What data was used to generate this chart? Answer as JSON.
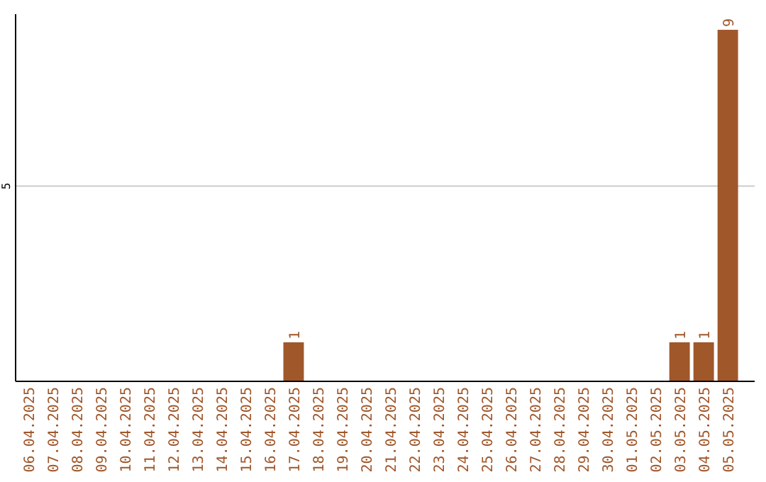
{
  "chart_data": {
    "type": "bar",
    "categories": [
      "06.04.2025",
      "07.04.2025",
      "08.04.2025",
      "09.04.2025",
      "10.04.2025",
      "11.04.2025",
      "12.04.2025",
      "13.04.2025",
      "14.04.2025",
      "15.04.2025",
      "16.04.2025",
      "17.04.2025",
      "18.04.2025",
      "19.04.2025",
      "20.04.2025",
      "21.04.2025",
      "22.04.2025",
      "23.04.2025",
      "24.04.2025",
      "25.04.2025",
      "26.04.2025",
      "27.04.2025",
      "28.04.2025",
      "29.04.2025",
      "30.04.2025",
      "01.05.2025",
      "02.05.2025",
      "03.05.2025",
      "04.05.2025",
      "05.05.2025"
    ],
    "values": [
      0,
      0,
      0,
      0,
      0,
      0,
      0,
      0,
      0,
      0,
      0,
      1,
      0,
      0,
      0,
      0,
      0,
      0,
      0,
      0,
      0,
      0,
      0,
      0,
      0,
      0,
      0,
      1,
      1,
      9
    ],
    "value_labels": [
      null,
      null,
      null,
      null,
      null,
      null,
      null,
      null,
      null,
      null,
      null,
      "1",
      null,
      null,
      null,
      null,
      null,
      null,
      null,
      null,
      null,
      null,
      null,
      null,
      null,
      null,
      null,
      "1",
      "1",
      "9"
    ],
    "color": "#a0572a",
    "ylim": [
      0,
      9.4
    ],
    "yticks": [
      5
    ],
    "grid": "y"
  }
}
